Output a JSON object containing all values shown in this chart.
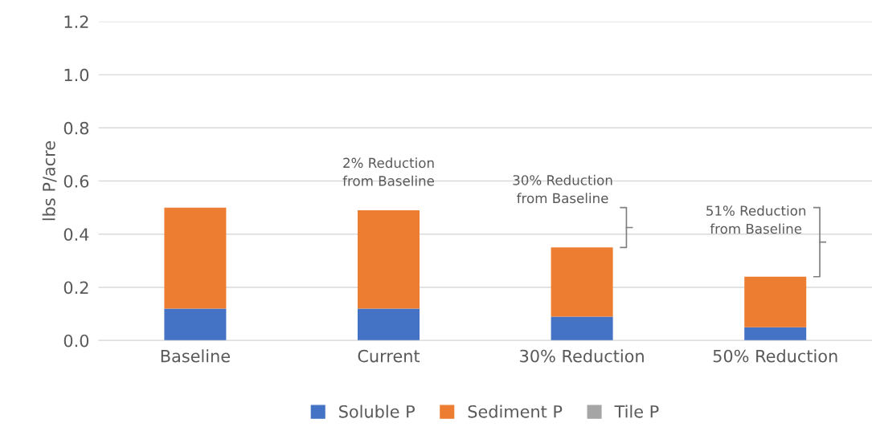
{
  "chart_data": {
    "type": "bar",
    "stacked": true,
    "ylabel": "lbs P/acre",
    "categories": [
      "Baseline",
      "Current",
      "30% Reduction",
      "50% Reduction"
    ],
    "series": [
      {
        "name": "Soluble P",
        "color": "#4472c4",
        "values": [
          0.12,
          0.12,
          0.09,
          0.05
        ]
      },
      {
        "name": "Sediment P",
        "color": "#ed7d31",
        "values": [
          0.38,
          0.37,
          0.26,
          0.19
        ]
      },
      {
        "name": "Tile P",
        "color": "#a5a5a5",
        "values": [
          0,
          0,
          0,
          0
        ]
      }
    ],
    "ylim": [
      0,
      1.2
    ],
    "yticks": [
      {
        "value": 0,
        "label": "0.0"
      },
      {
        "value": 0.2,
        "label": "0.2"
      },
      {
        "value": 0.4,
        "label": "0.4"
      },
      {
        "value": 0.6,
        "label": "0.6"
      },
      {
        "value": 0.8,
        "label": "0.8"
      },
      {
        "value": 1.0,
        "label": "1.0"
      },
      {
        "value": 1.2,
        "label": "1.2"
      }
    ],
    "grid": "y",
    "legend": "bottom",
    "annotations": [
      "2% Reduction\nfrom Baseline",
      "30% Reduction\nfrom Baseline",
      "51% Reduction\nfrom Baseline"
    ]
  }
}
